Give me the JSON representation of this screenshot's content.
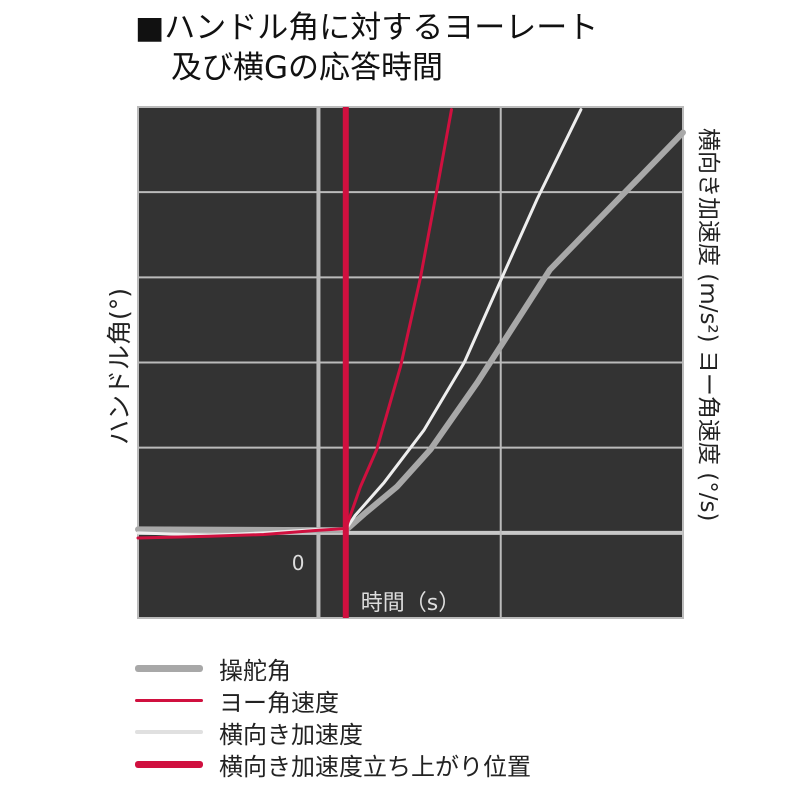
{
  "title": {
    "line1": "■ハンドル角に対するヨーレート",
    "line2": "及び横Gの応答時間"
  },
  "chart_data": {
    "type": "line",
    "title": "■ハンドル角に対するヨーレート 及び横Gの応答時間",
    "xlabel": "時間（s）",
    "ylabel_left": "ハンドル角(°)",
    "ylabel_right": "横向き加速度 (m/s²) ヨー角速度 (°/s)",
    "x_tick_labels": [
      "0"
    ],
    "xlim": [
      -0.99,
      2.0
    ],
    "ylim": [
      -1,
      5
    ],
    "grid": true,
    "background": "#333333",
    "legend_placement": "bottom",
    "marker_x": 0.15,
    "series": [
      {
        "name": "操舵角",
        "color": "#a8a8a8",
        "points": [
          [
            -0.99,
            0.04
          ],
          [
            0.15,
            0.03
          ],
          [
            0.25,
            0.22
          ],
          [
            0.43,
            0.54
          ],
          [
            0.615,
            0.98
          ],
          [
            0.87,
            1.76
          ],
          [
            1.27,
            3.09
          ],
          [
            2.0,
            4.7
          ]
        ]
      },
      {
        "name": "ヨー角速度",
        "color": "#d0103f",
        "points": [
          [
            -0.99,
            -0.06
          ],
          [
            -0.6,
            -0.04
          ],
          [
            -0.3,
            -0.02
          ],
          [
            0.0,
            0.03
          ],
          [
            0.15,
            0.05
          ],
          [
            0.23,
            0.54
          ],
          [
            0.32,
            0.98
          ],
          [
            0.45,
            1.95
          ],
          [
            0.56,
            3.0
          ],
          [
            0.65,
            4.03
          ],
          [
            0.73,
            4.97
          ]
        ]
      },
      {
        "name": "横向き加速度",
        "color": "#eeeeee",
        "points": [
          [
            -0.99,
            0.0
          ],
          [
            -0.6,
            -0.03
          ],
          [
            -0.3,
            0.0
          ],
          [
            0.0,
            0.04
          ],
          [
            0.15,
            0.04
          ],
          [
            0.2,
            0.2
          ],
          [
            0.36,
            0.59
          ],
          [
            0.58,
            1.21
          ],
          [
            0.8,
            2.0
          ],
          [
            1.02,
            3.06
          ],
          [
            1.2,
            3.92
          ],
          [
            1.44,
            4.97
          ]
        ]
      }
    ]
  },
  "legend": [
    {
      "label": "操舵角",
      "color": "#a8a8a8"
    },
    {
      "label": "ヨー角速度",
      "color": "#d0103f"
    },
    {
      "label": "横向き加速度",
      "color": "#e0e0e0"
    },
    {
      "label": "横向き加速度立ち上がり位置",
      "color": "#d0103f"
    }
  ]
}
